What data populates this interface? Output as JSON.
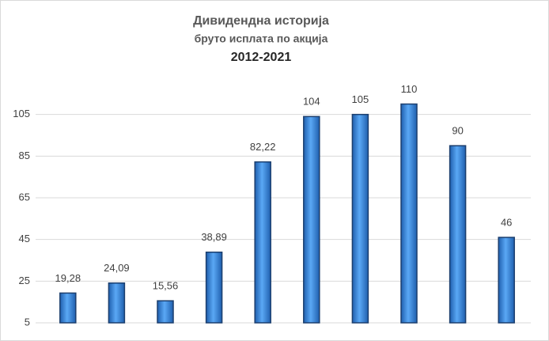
{
  "chart_data": {
    "type": "bar",
    "title": "Дивидендна историја",
    "subtitle": "бруто исплата по акција",
    "period": "2012-2021",
    "categories": [
      null,
      null,
      null,
      null,
      null,
      null,
      null,
      null,
      null,
      null
    ],
    "values": [
      19.28,
      24.09,
      15.56,
      38.89,
      82.22,
      104,
      105,
      110,
      90,
      46
    ],
    "value_labels": [
      "19,28",
      "24,09",
      "15,56",
      "38,89",
      "82,22",
      "104",
      "105",
      "110",
      "90",
      "46"
    ],
    "color": "#3a8ee6",
    "ylim": [
      5,
      125
    ],
    "yticks": [
      5,
      25,
      45,
      65,
      85,
      105
    ],
    "grid": true
  }
}
